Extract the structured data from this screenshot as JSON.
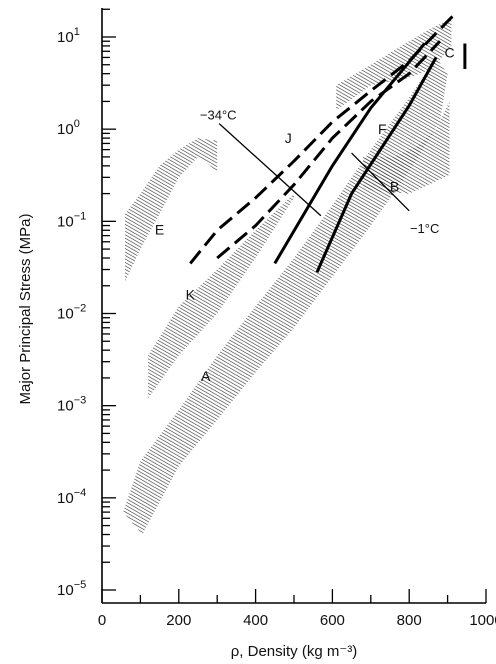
{
  "chart_data": {
    "type": "area",
    "title": "",
    "xlabel": "ρ, Density (kg m⁻³)",
    "ylabel": "Major Principal Stress (MPa)",
    "x_scale": "linear",
    "y_scale": "log",
    "xlim": [
      0,
      1000
    ],
    "ylim": [
      1e-05,
      20
    ],
    "x_ticks": [
      {
        "value": 0,
        "label": "0"
      },
      {
        "value": 200,
        "label": "200"
      },
      {
        "value": 400,
        "label": "400"
      },
      {
        "value": 600,
        "label": "600"
      },
      {
        "value": 800,
        "label": "800"
      },
      {
        "value": 1000,
        "label": "1000"
      }
    ],
    "y_ticks": [
      {
        "value": 1e-05,
        "base": "10",
        "exp": "−5"
      },
      {
        "value": 0.0001,
        "base": "10",
        "exp": "−4"
      },
      {
        "value": 0.001,
        "base": "10",
        "exp": "−3"
      },
      {
        "value": 0.01,
        "base": "10",
        "exp": "−2"
      },
      {
        "value": 0.1,
        "base": "10",
        "exp": "−1"
      },
      {
        "value": 1,
        "base": "10",
        "exp": "0"
      },
      {
        "value": 10,
        "base": "10",
        "exp": "1"
      }
    ],
    "grid": false,
    "regions": [
      {
        "name": "A",
        "label_at": [
          270,
          0.0021
        ],
        "lower": [
          [
            105,
            4e-05
          ],
          [
            200,
            0.00022
          ],
          [
            300,
            0.0007
          ],
          [
            400,
            0.0023
          ],
          [
            500,
            0.007
          ],
          [
            600,
            0.025
          ],
          [
            700,
            0.09
          ],
          [
            800,
            0.35
          ],
          [
            880,
            1.2
          ],
          [
            900,
            4
          ]
        ],
        "upper": [
          [
            55,
            7e-05
          ],
          [
            100,
            0.00025
          ],
          [
            200,
            0.0009
          ],
          [
            300,
            0.0035
          ],
          [
            400,
            0.012
          ],
          [
            500,
            0.04
          ],
          [
            600,
            0.15
          ],
          [
            700,
            0.6
          ],
          [
            800,
            2.2
          ],
          [
            870,
            6
          ]
        ]
      },
      {
        "name": "B",
        "label_at": [
          762,
          0.24
        ],
        "lower": [
          [
            680,
            0.23
          ],
          [
            720,
            0.21
          ],
          [
            800,
            0.2
          ],
          [
            860,
            0.26
          ],
          [
            905,
            0.32
          ]
        ],
        "upper": [
          [
            680,
            0.5
          ],
          [
            760,
            0.5
          ],
          [
            820,
            0.65
          ],
          [
            870,
            1.0
          ],
          [
            905,
            2.0
          ]
        ]
      },
      {
        "name": "C",
        "label_at": [
          905,
          6.8
        ],
        "lower": [
          [
            610,
            1.6
          ],
          [
            700,
            3.0
          ],
          [
            790,
            3.5
          ],
          [
            860,
            4.5
          ],
          [
            910,
            8
          ]
        ],
        "upper": [
          [
            610,
            3.0
          ],
          [
            700,
            5.0
          ],
          [
            780,
            8.0
          ],
          [
            850,
            12
          ],
          [
            910,
            16
          ]
        ]
      },
      {
        "name": "E",
        "label_at": [
          150,
          0.082
        ],
        "lower": [
          [
            60,
            0.022
          ],
          [
            100,
            0.05
          ],
          [
            150,
            0.12
          ],
          [
            200,
            0.3
          ],
          [
            250,
            0.5
          ],
          [
            300,
            0.35
          ]
        ],
        "upper": [
          [
            60,
            0.12
          ],
          [
            100,
            0.2
          ],
          [
            150,
            0.4
          ],
          [
            200,
            0.6
          ],
          [
            250,
            0.8
          ],
          [
            300,
            0.75
          ]
        ]
      },
      {
        "name": "K",
        "label_at": [
          230,
          0.016
        ],
        "lower": [
          [
            120,
            0.0012
          ],
          [
            200,
            0.0035
          ],
          [
            300,
            0.01
          ],
          [
            400,
            0.04
          ],
          [
            500,
            0.18
          ]
        ],
        "upper": [
          [
            120,
            0.0035
          ],
          [
            200,
            0.012
          ],
          [
            300,
            0.03
          ],
          [
            400,
            0.08
          ],
          [
            500,
            0.2
          ]
        ]
      }
    ],
    "curves": [
      {
        "name": "J",
        "style": "dashed",
        "label_at": [
          485,
          0.8
        ],
        "points": [
          [
            230,
            0.035
          ],
          [
            300,
            0.08
          ],
          [
            400,
            0.18
          ],
          [
            500,
            0.45
          ],
          [
            600,
            1.2
          ],
          [
            700,
            2.6
          ],
          [
            800,
            5.5
          ],
          [
            920,
            18
          ]
        ]
      },
      {
        "name": "J",
        "style": "dashed",
        "label_at": null,
        "points": [
          [
            300,
            0.04
          ],
          [
            400,
            0.09
          ],
          [
            500,
            0.25
          ],
          [
            600,
            0.8
          ],
          [
            700,
            2.0
          ],
          [
            800,
            4.0
          ],
          [
            880,
            9
          ]
        ]
      },
      {
        "name": "F",
        "style": "solid",
        "label_at": [
          730,
          1.0
        ],
        "points": [
          [
            450,
            0.035
          ],
          [
            600,
            0.4
          ],
          [
            700,
            1.7
          ],
          [
            840,
            8.5
          ]
        ]
      },
      {
        "name": "F",
        "style": "solid",
        "label_at": null,
        "points": [
          [
            560,
            0.028
          ],
          [
            650,
            0.2
          ],
          [
            800,
            1.8
          ],
          [
            870,
            6.0
          ]
        ]
      }
    ],
    "annotations": [
      {
        "text": "−34°C",
        "label_at": [
          255,
          1.45
        ],
        "leader": [
          [
            305,
            1.15
          ],
          [
            570,
            0.115
          ]
        ]
      },
      {
        "text": "−1°C",
        "label_at": [
          802,
          0.085
        ],
        "leader": [
          [
            650,
            0.55
          ],
          [
            800,
            0.13
          ]
        ]
      }
    ],
    "range_marks": [
      {
        "x": 945,
        "y_range": [
          4.5,
          8.5
        ]
      }
    ]
  }
}
